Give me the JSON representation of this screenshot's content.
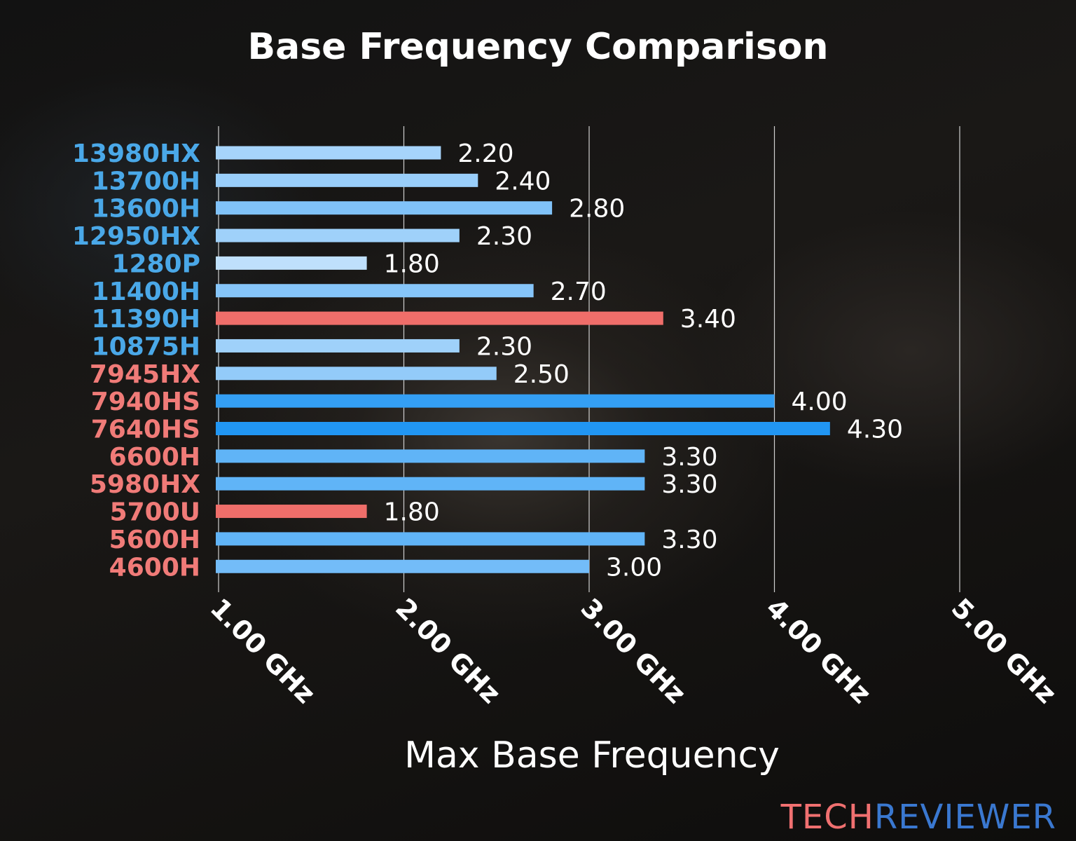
{
  "chart_data": {
    "type": "bar",
    "orientation": "horizontal",
    "title": "Base Frequency Comparison",
    "xlabel": "Max Base Frequency",
    "ylabel": "",
    "xlim": [
      1.0,
      5.0
    ],
    "xticks": [
      1.0,
      2.0,
      3.0,
      4.0,
      5.0
    ],
    "xtick_labels": [
      "1.00 GHz",
      "2.00 GHz",
      "3.00 GHz",
      "4.00 GHz",
      "5.00 GHz"
    ],
    "grid": "vertical",
    "categories": [
      "13980HX",
      "13700H",
      "13600H",
      "12950HX",
      "1280P",
      "11400H",
      "11390H",
      "10875H",
      "7945HX",
      "7940HS",
      "7640HS",
      "6600H",
      "5980HX",
      "5700U",
      "5600H",
      "4600H"
    ],
    "values": [
      2.2,
      2.4,
      2.8,
      2.3,
      1.8,
      2.7,
      3.4,
      2.3,
      2.5,
      4.0,
      4.3,
      3.3,
      3.3,
      1.8,
      3.3,
      3.0
    ],
    "data_labels": [
      "2.20",
      "2.40",
      "2.80",
      "2.30",
      "1.80",
      "2.70",
      "3.40",
      "2.30",
      "2.50",
      "4.00",
      "4.30",
      "3.30",
      "3.30",
      "1.80",
      "3.30",
      "3.00"
    ],
    "category_groups": [
      "intel",
      "intel",
      "intel",
      "intel",
      "intel",
      "intel",
      "intel",
      "intel",
      "amd",
      "amd",
      "amd",
      "amd",
      "amd",
      "amd",
      "amd",
      "amd"
    ],
    "highlighted": [
      "11390H",
      "5700U"
    ],
    "colors": {
      "intel_label": "#4aa8e8",
      "amd_label": "#f07b78",
      "highlight_bar": "#ef6e6a",
      "bar_low": "#bfe0fc",
      "bar_high": "#2196f3",
      "text": "#ffffff"
    }
  },
  "watermark": {
    "part1": "TECH",
    "part2": "REVIEWER",
    "color1": "#f07070",
    "color2": "#3a78d0"
  }
}
